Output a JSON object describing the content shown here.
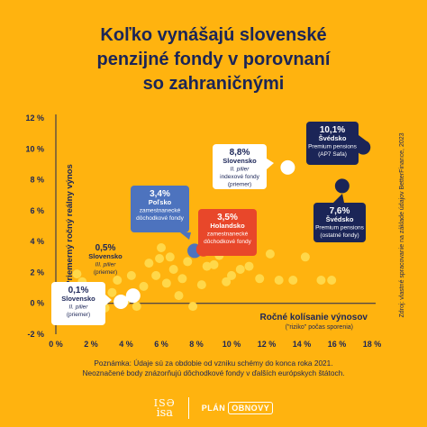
{
  "title_lines": [
    "Koľko vynášajú slovenské",
    "penzijné fondy v porovnaní",
    "so zahraničnými"
  ],
  "source": "Zdroj: vlastné spracovanie na základe údajov BetterFinance, 2023",
  "note_lines": [
    "Poznámka: Údaje sú za obdobie od vzniku schémy do konca roka 2021.",
    "Neoznačené body znázorňujú dôchodkové fondy v ďalších európskych štátoch."
  ],
  "footer": {
    "logo_top": "ISƏ",
    "logo_bottom": "isa",
    "plan_text": "PLÁN",
    "obnovy_text": "OBNOVY"
  },
  "colors": {
    "background": "#FFB30F",
    "navy": "#1B2557",
    "blue": "#4D73BE",
    "red": "#E8472A",
    "point_light": "#FFD84A",
    "point_white": "#FFFFFF"
  },
  "chart_data": {
    "type": "scatter",
    "xlabel": "Ročné kolísanie výnosov",
    "xlabel_sub": "(\"riziko\" počas sporenia)",
    "ylabel": "Priemerný ročný reálny výnos",
    "xlim": [
      0,
      18
    ],
    "ylim": [
      -2,
      12
    ],
    "x_ticks": [
      "0 %",
      "2 %",
      "4 %",
      "6 %",
      "8 %",
      "10 %",
      "12 %",
      "14 %",
      "16 %",
      "18 %"
    ],
    "y_ticks": [
      "-2 %",
      "0 %",
      "2 %",
      "4 %",
      "6 %",
      "8 %",
      "10 %",
      "12 %"
    ],
    "grid": false,
    "highlighted": [
      {
        "value": "0,1%",
        "country": "Slovensko",
        "line2": "II. pilier",
        "line3": "(priemer)",
        "x": 3.7,
        "y": 0.1,
        "color": "#FFFFFF",
        "box": "white"
      },
      {
        "value": "0,5%",
        "country": "Slovensko",
        "line2": "III. pilier",
        "line3": "(priemer)",
        "x": 4.4,
        "y": 0.5,
        "color": "#FFFFFF",
        "box": "none"
      },
      {
        "value": "3,4%",
        "country": "Poľsko",
        "line2": "zamestnanecké",
        "line3": "dôchodkové fondy",
        "x": 7.9,
        "y": 3.4,
        "color": "#4D73BE",
        "box": "blue"
      },
      {
        "value": "3,5%",
        "country": "Holandsko",
        "line2": "zamestnanecké",
        "line3": "dôchodkové fondy",
        "x": 8.4,
        "y": 3.5,
        "color": "#E8472A",
        "box": "red"
      },
      {
        "value": "8,8%",
        "country": "Slovensko",
        "line2": "II. pilier",
        "line3": "indexové fondy",
        "line4": "(priemer)",
        "x": 13.2,
        "y": 8.8,
        "color": "#FFFFFF",
        "box": "white"
      },
      {
        "value": "10,1%",
        "country": "Švédsko",
        "line2": "Premium pensions",
        "line3": "(AP7 Safa)",
        "x": 17.5,
        "y": 10.1,
        "color": "#1B2557",
        "box": "navy"
      },
      {
        "value": "7,6%",
        "country": "Švédsko",
        "line2": "Premium pensions",
        "line3": "(ostatné fondy)",
        "x": 16.3,
        "y": 7.6,
        "color": "#1B2557",
        "box": "navy"
      }
    ],
    "other_points": [
      {
        "x": 1.2,
        "y": 1.9
      },
      {
        "x": 1.5,
        "y": 1.4
      },
      {
        "x": 1.9,
        "y": 0.9
      },
      {
        "x": 2.4,
        "y": 0.3
      },
      {
        "x": 2.8,
        "y": -0.3
      },
      {
        "x": 3.2,
        "y": 0.7
      },
      {
        "x": 3.5,
        "y": 1.5
      },
      {
        "x": 4.0,
        "y": 0.2
      },
      {
        "x": 4.3,
        "y": 1.8
      },
      {
        "x": 4.6,
        "y": -0.2
      },
      {
        "x": 5.0,
        "y": 1.1
      },
      {
        "x": 5.3,
        "y": 2.6
      },
      {
        "x": 5.7,
        "y": 1.8
      },
      {
        "x": 5.9,
        "y": 2.9
      },
      {
        "x": 6.0,
        "y": 3.6
      },
      {
        "x": 6.3,
        "y": 1.3
      },
      {
        "x": 6.5,
        "y": 3.0
      },
      {
        "x": 6.7,
        "y": 2.2
      },
      {
        "x": 7.0,
        "y": 0.5
      },
      {
        "x": 7.2,
        "y": 1.6
      },
      {
        "x": 7.5,
        "y": 2.7
      },
      {
        "x": 7.8,
        "y": -0.2
      },
      {
        "x": 8.3,
        "y": 1.2
      },
      {
        "x": 8.6,
        "y": 2.4
      },
      {
        "x": 9.0,
        "y": 2.5
      },
      {
        "x": 9.3,
        "y": 3.1
      },
      {
        "x": 9.7,
        "y": 1.4
      },
      {
        "x": 10.0,
        "y": 1.8
      },
      {
        "x": 10.5,
        "y": 2.2
      },
      {
        "x": 11.0,
        "y": 2.4
      },
      {
        "x": 11.6,
        "y": 1.6
      },
      {
        "x": 12.2,
        "y": 3.2
      },
      {
        "x": 12.7,
        "y": 1.5
      },
      {
        "x": 13.5,
        "y": 1.5
      },
      {
        "x": 14.2,
        "y": 3.0
      },
      {
        "x": 15.1,
        "y": 1.5
      },
      {
        "x": 15.7,
        "y": 1.5
      }
    ]
  }
}
